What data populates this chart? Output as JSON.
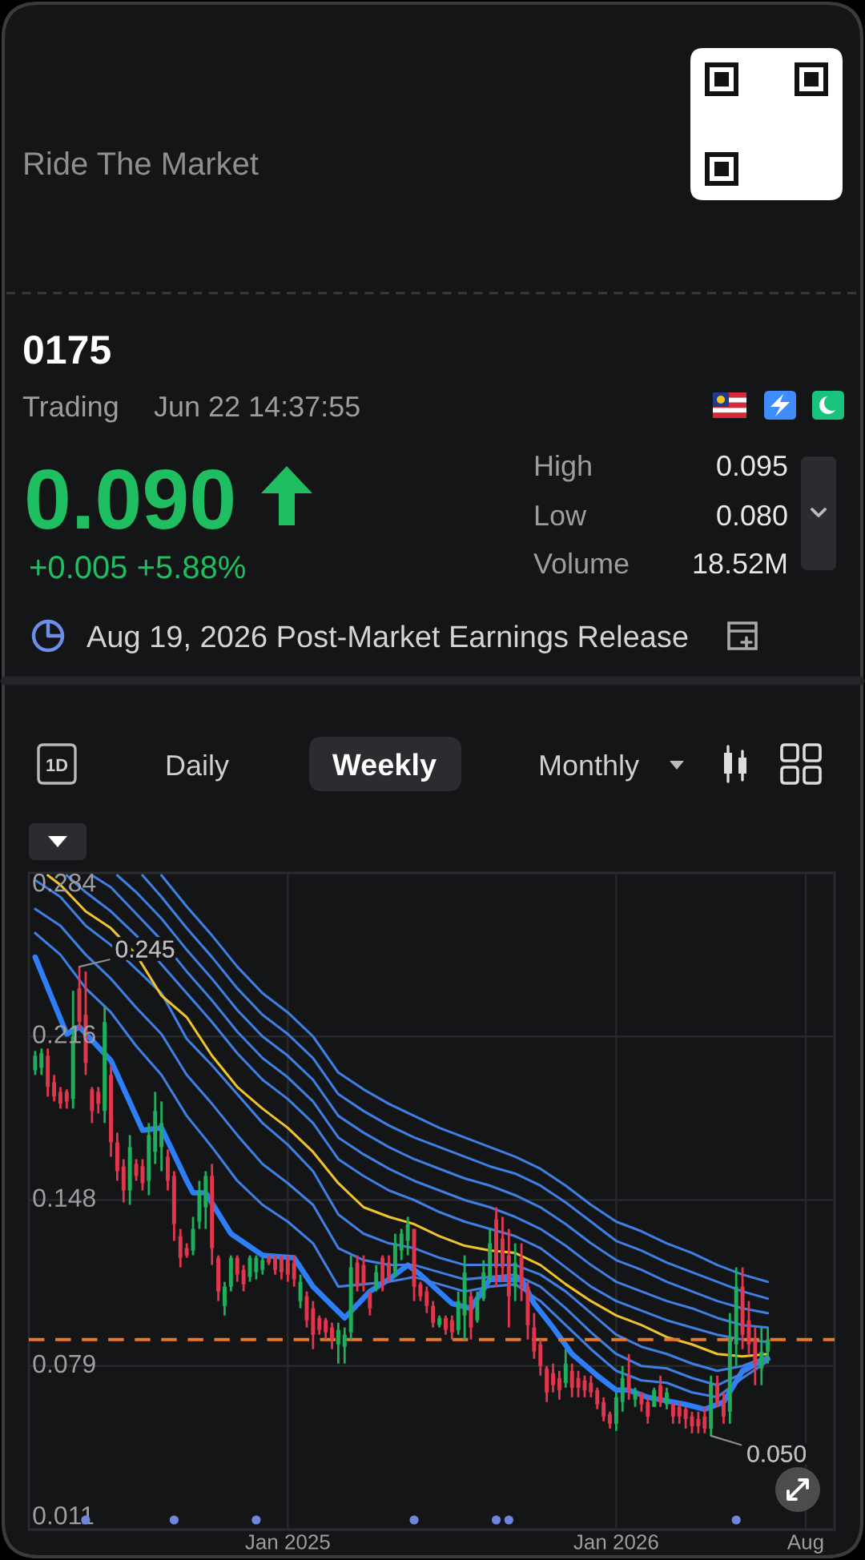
{
  "chart_data": {
    "type": "candlestick",
    "title": "0175",
    "annotations": [
      "Ride The Market",
      "Trading",
      "Jun 22 14:37:55",
      "0.090",
      "+0.005 +5.88%",
      "High",
      "0.095",
      "Low",
      "0.080",
      "Volume",
      "18.52M",
      "Aug 19, 2026 Post-Market Earnings Release",
      "1D",
      "Daily",
      "Weekly",
      "Monthly",
      {
        "text": "0.245",
        "x": "2024-05-20",
        "y": 0.245
      },
      {
        "text": "0.050",
        "x": "2026-04-20",
        "y": 0.05
      }
    ],
    "x": [
      "2024-04-01",
      "2024-04-08",
      "2024-04-15",
      "2024-04-22",
      "2024-04-29",
      "2024-05-06",
      "2024-05-13",
      "2024-05-20",
      "2024-05-27",
      "2024-06-03",
      "2024-06-10",
      "2024-06-17",
      "2024-06-24",
      "2024-07-01",
      "2024-07-08",
      "2024-07-15",
      "2024-07-22",
      "2024-07-29",
      "2024-08-05",
      "2024-08-12",
      "2024-08-19",
      "2024-08-26",
      "2024-09-02",
      "2024-09-09",
      "2024-09-16",
      "2024-09-23",
      "2024-09-30",
      "2024-10-07",
      "2024-10-14",
      "2024-10-21",
      "2024-10-28",
      "2024-11-04",
      "2024-11-11",
      "2024-11-18",
      "2024-11-25",
      "2024-12-02",
      "2024-12-09",
      "2024-12-16",
      "2024-12-23",
      "2024-12-30",
      "2025-01-06",
      "2025-01-13",
      "2025-01-20",
      "2025-01-27",
      "2025-02-03",
      "2025-02-10",
      "2025-02-17",
      "2025-02-24",
      "2025-03-03",
      "2025-03-10",
      "2025-03-17",
      "2025-03-24",
      "2025-03-31",
      "2025-04-07",
      "2025-04-14",
      "2025-04-21",
      "2025-04-28",
      "2025-05-05",
      "2025-05-12",
      "2025-05-19",
      "2025-05-26",
      "2025-06-02",
      "2025-06-09",
      "2025-06-16",
      "2025-06-23",
      "2025-06-30",
      "2025-07-07",
      "2025-07-14",
      "2025-07-21",
      "2025-07-28",
      "2025-08-04",
      "2025-08-11",
      "2025-08-18",
      "2025-08-25",
      "2025-09-01",
      "2025-09-08",
      "2025-09-15",
      "2025-09-22",
      "2025-09-29",
      "2025-10-06",
      "2025-10-13",
      "2025-10-20",
      "2025-10-27",
      "2025-11-03",
      "2025-11-10",
      "2025-11-17",
      "2025-11-24",
      "2025-12-01",
      "2025-12-08",
      "2025-12-15",
      "2025-12-22",
      "2025-12-29",
      "2026-01-05",
      "2026-01-12",
      "2026-01-19",
      "2026-01-26",
      "2026-02-02",
      "2026-02-09",
      "2026-02-16",
      "2026-02-23",
      "2026-03-02",
      "2026-03-09",
      "2026-03-16",
      "2026-03-23",
      "2026-03-30",
      "2026-04-06",
      "2026-04-13",
      "2026-04-20",
      "2026-04-27",
      "2026-05-04",
      "2026-05-11",
      "2026-05-18",
      "2026-05-25",
      "2026-06-01",
      "2026-06-08",
      "2026-06-15",
      "2026-06-22"
    ],
    "ohlc": [
      [
        0.202,
        0.21,
        0.2,
        0.208
      ],
      [
        0.203,
        0.211,
        0.2,
        0.209
      ],
      [
        0.208,
        0.211,
        0.191,
        0.195
      ],
      [
        0.197,
        0.2,
        0.189,
        0.191
      ],
      [
        0.193,
        0.195,
        0.186,
        0.188
      ],
      [
        0.193,
        0.194,
        0.186,
        0.189
      ],
      [
        0.19,
        0.235,
        0.186,
        0.216
      ],
      [
        0.236,
        0.245,
        0.219,
        0.222
      ],
      [
        0.225,
        0.243,
        0.2,
        0.205
      ],
      [
        0.194,
        0.195,
        0.18,
        0.185
      ],
      [
        0.193,
        0.195,
        0.184,
        0.188
      ],
      [
        0.185,
        0.229,
        0.18,
        0.222
      ],
      [
        0.2,
        0.204,
        0.166,
        0.172
      ],
      [
        0.172,
        0.176,
        0.156,
        0.16
      ],
      [
        0.162,
        0.165,
        0.147,
        0.152
      ],
      [
        0.152,
        0.175,
        0.146,
        0.17
      ],
      [
        0.163,
        0.165,
        0.156,
        0.158
      ],
      [
        0.162,
        0.165,
        0.152,
        0.155
      ],
      [
        0.156,
        0.18,
        0.15,
        0.175
      ],
      [
        0.168,
        0.193,
        0.163,
        0.185
      ],
      [
        0.17,
        0.189,
        0.16,
        0.18
      ],
      [
        0.166,
        0.169,
        0.152,
        0.156
      ],
      [
        0.158,
        0.16,
        0.131,
        0.138
      ],
      [
        0.133,
        0.136,
        0.12,
        0.124
      ],
      [
        0.128,
        0.13,
        0.124,
        0.125
      ],
      [
        0.127,
        0.141,
        0.125,
        0.136
      ],
      [
        0.139,
        0.156,
        0.136,
        0.152
      ],
      [
        0.145,
        0.16,
        0.136,
        0.158
      ],
      [
        0.158,
        0.163,
        0.121,
        0.128
      ],
      [
        0.124,
        0.125,
        0.106,
        0.11
      ],
      [
        0.104,
        0.114,
        0.1,
        0.112
      ],
      [
        0.112,
        0.125,
        0.11,
        0.124
      ],
      [
        0.124,
        0.125,
        0.114,
        0.117
      ],
      [
        0.119,
        0.121,
        0.11,
        0.113
      ],
      [
        0.116,
        0.125,
        0.114,
        0.124
      ],
      [
        0.118,
        0.125,
        0.115,
        0.124
      ],
      [
        0.119,
        0.124,
        0.117,
        0.123
      ],
      [
        0.124,
        0.125,
        0.121,
        0.122
      ],
      [
        0.124,
        0.125,
        0.117,
        0.119
      ],
      [
        0.124,
        0.125,
        0.115,
        0.118
      ],
      [
        0.123,
        0.125,
        0.114,
        0.117
      ],
      [
        0.122,
        0.125,
        0.112,
        0.115
      ],
      [
        0.106,
        0.117,
        0.103,
        0.114
      ],
      [
        0.108,
        0.11,
        0.095,
        0.098
      ],
      [
        0.103,
        0.106,
        0.086,
        0.092
      ],
      [
        0.099,
        0.1,
        0.092,
        0.094
      ],
      [
        0.098,
        0.099,
        0.09,
        0.093
      ],
      [
        0.095,
        0.097,
        0.086,
        0.09
      ],
      [
        0.088,
        0.097,
        0.08,
        0.094
      ],
      [
        0.087,
        0.095,
        0.08,
        0.092
      ],
      [
        0.093,
        0.125,
        0.09,
        0.12
      ],
      [
        0.122,
        0.125,
        0.11,
        0.112
      ],
      [
        0.121,
        0.125,
        0.11,
        0.113
      ],
      [
        0.109,
        0.11,
        0.1,
        0.103
      ],
      [
        0.111,
        0.121,
        0.11,
        0.118
      ],
      [
        0.124,
        0.125,
        0.11,
        0.113
      ],
      [
        0.122,
        0.125,
        0.114,
        0.116
      ],
      [
        0.118,
        0.134,
        0.116,
        0.13
      ],
      [
        0.127,
        0.136,
        0.123,
        0.134
      ],
      [
        0.131,
        0.141,
        0.125,
        0.138
      ],
      [
        0.136,
        0.136,
        0.106,
        0.112
      ],
      [
        0.113,
        0.114,
        0.106,
        0.108
      ],
      [
        0.11,
        0.112,
        0.101,
        0.104
      ],
      [
        0.104,
        0.106,
        0.095,
        0.097
      ],
      [
        0.096,
        0.1,
        0.095,
        0.099
      ],
      [
        0.099,
        0.1,
        0.092,
        0.094
      ],
      [
        0.098,
        0.1,
        0.09,
        0.093
      ],
      [
        0.094,
        0.11,
        0.092,
        0.106
      ],
      [
        0.1,
        0.125,
        0.09,
        0.118
      ],
      [
        0.108,
        0.11,
        0.09,
        0.095
      ],
      [
        0.098,
        0.11,
        0.097,
        0.106
      ],
      [
        0.107,
        0.123,
        0.106,
        0.118
      ],
      [
        0.116,
        0.136,
        0.114,
        0.13
      ],
      [
        0.14,
        0.145,
        0.112,
        0.12
      ],
      [
        0.132,
        0.141,
        0.114,
        0.12
      ],
      [
        0.125,
        0.136,
        0.095,
        0.108
      ],
      [
        0.112,
        0.13,
        0.106,
        0.122
      ],
      [
        0.124,
        0.13,
        0.106,
        0.112
      ],
      [
        0.112,
        0.114,
        0.09,
        0.096
      ],
      [
        0.095,
        0.101,
        0.082,
        0.085
      ],
      [
        0.088,
        0.09,
        0.075,
        0.079
      ],
      [
        0.078,
        0.079,
        0.064,
        0.068
      ],
      [
        0.076,
        0.08,
        0.068,
        0.071
      ],
      [
        0.074,
        0.077,
        0.065,
        0.069
      ],
      [
        0.072,
        0.086,
        0.07,
        0.08
      ],
      [
        0.077,
        0.08,
        0.066,
        0.07
      ],
      [
        0.074,
        0.077,
        0.066,
        0.07
      ],
      [
        0.073,
        0.075,
        0.066,
        0.069
      ],
      [
        0.072,
        0.075,
        0.066,
        0.068
      ],
      [
        0.069,
        0.07,
        0.061,
        0.063
      ],
      [
        0.064,
        0.066,
        0.056,
        0.058
      ],
      [
        0.059,
        0.06,
        0.053,
        0.055
      ],
      [
        0.055,
        0.068,
        0.052,
        0.066
      ],
      [
        0.064,
        0.079,
        0.06,
        0.074
      ],
      [
        0.075,
        0.084,
        0.065,
        0.068
      ],
      [
        0.065,
        0.07,
        0.062,
        0.069
      ],
      [
        0.068,
        0.068,
        0.06,
        0.063
      ],
      [
        0.064,
        0.066,
        0.055,
        0.058
      ],
      [
        0.062,
        0.07,
        0.062,
        0.069
      ],
      [
        0.071,
        0.075,
        0.062,
        0.064
      ],
      [
        0.063,
        0.07,
        0.061,
        0.068
      ],
      [
        0.063,
        0.064,
        0.055,
        0.058
      ],
      [
        0.062,
        0.064,
        0.055,
        0.058
      ],
      [
        0.061,
        0.062,
        0.053,
        0.057
      ],
      [
        0.058,
        0.06,
        0.051,
        0.054
      ],
      [
        0.057,
        0.06,
        0.051,
        0.054
      ],
      [
        0.058,
        0.062,
        0.051,
        0.053
      ],
      [
        0.053,
        0.075,
        0.05,
        0.072
      ],
      [
        0.072,
        0.075,
        0.062,
        0.064
      ],
      [
        0.065,
        0.068,
        0.055,
        0.058
      ],
      [
        0.06,
        0.101,
        0.055,
        0.09
      ],
      [
        0.088,
        0.12,
        0.079,
        0.112
      ],
      [
        0.112,
        0.12,
        0.086,
        0.092
      ],
      [
        0.098,
        0.106,
        0.084,
        0.088
      ],
      [
        0.09,
        0.095,
        0.071,
        0.08
      ],
      [
        0.078,
        0.095,
        0.071,
        0.085
      ],
      [
        0.085,
        0.095,
        0.08,
        0.09
      ]
    ],
    "colors": [
      "#1fae5b",
      "#1fae5b",
      "#e2364d",
      "#e2364d",
      "#e2364d",
      "#e2364d",
      "#1fae5b",
      "#e2364d",
      "#e2364d",
      "#e2364d",
      "#e2364d",
      "#1fae5b",
      "#e2364d",
      "#e2364d",
      "#e2364d",
      "#1fae5b",
      "#e2364d",
      "#e2364d",
      "#1fae5b",
      "#1fae5b",
      "#1fae5b",
      "#e2364d",
      "#e2364d",
      "#e2364d",
      "#e2364d",
      "#1fae5b",
      "#1fae5b",
      "#1fae5b",
      "#e2364d",
      "#e2364d",
      "#1fae5b",
      "#1fae5b",
      "#e2364d",
      "#e2364d",
      "#1fae5b",
      "#1fae5b",
      "#1fae5b",
      "#e2364d",
      "#e2364d",
      "#e2364d",
      "#e2364d",
      "#e2364d",
      "#1fae5b",
      "#e2364d",
      "#e2364d",
      "#e2364d",
      "#e2364d",
      "#e2364d",
      "#1fae5b",
      "#1fae5b",
      "#1fae5b",
      "#e2364d",
      "#e2364d",
      "#e2364d",
      "#1fae5b",
      "#e2364d",
      "#e2364d",
      "#1fae5b",
      "#1fae5b",
      "#1fae5b",
      "#e2364d",
      "#e2364d",
      "#e2364d",
      "#e2364d",
      "#1fae5b",
      "#e2364d",
      "#e2364d",
      "#1fae5b",
      "#1fae5b",
      "#e2364d",
      "#1fae5b",
      "#1fae5b",
      "#1fae5b",
      "#e2364d",
      "#e2364d",
      "#e2364d",
      "#1fae5b",
      "#e2364d",
      "#e2364d",
      "#e2364d",
      "#e2364d",
      "#e2364d",
      "#e2364d",
      "#e2364d",
      "#1fae5b",
      "#e2364d",
      "#e2364d",
      "#e2364d",
      "#e2364d",
      "#e2364d",
      "#e2364d",
      "#e2364d",
      "#1fae5b",
      "#1fae5b",
      "#e2364d",
      "#1fae5b",
      "#e2364d",
      "#e2364d",
      "#1fae5b",
      "#e2364d",
      "#1fae5b",
      "#e2364d",
      "#e2364d",
      "#e2364d",
      "#e2364d",
      "#e2364d",
      "#e2364d",
      "#1fae5b",
      "#e2364d",
      "#e2364d",
      "#1fae5b",
      "#1fae5b",
      "#e2364d",
      "#e2364d",
      "#e2364d",
      "#1fae5b",
      "#1fae5b"
    ],
    "series": [
      {
        "type": "line",
        "color": "#2d7ff9",
        "x": [
          "2024-04-01",
          "2024-05-06",
          "2024-05-20",
          "2024-06-24",
          "2024-07-29",
          "2024-08-19",
          "2024-09-16",
          "2024-09-23",
          "2024-10-07",
          "2024-11-04",
          "2024-12-09",
          "2025-01-13",
          "2025-02-03",
          "2025-03-10",
          "2025-04-07",
          "2025-04-28",
          "2025-05-19",
          "2025-06-02",
          "2025-07-07",
          "2025-07-28",
          "2025-08-18",
          "2025-09-22",
          "2025-10-06",
          "2025-10-27",
          "2025-11-17",
          "2025-12-15",
          "2026-01-05",
          "2026-01-19",
          "2026-02-09",
          "2026-03-23",
          "2026-04-13",
          "2026-05-04",
          "2026-05-25",
          "2026-06-08",
          "2026-06-22"
        ],
        "values": [
          0.249,
          0.217,
          0.22,
          0.206,
          0.177,
          0.178,
          0.156,
          0.151,
          0.151,
          0.134,
          0.125,
          0.124,
          0.112,
          0.099,
          0.11,
          0.115,
          0.121,
          0.117,
          0.105,
          0.103,
          0.115,
          0.115,
          0.105,
          0.095,
          0.084,
          0.075,
          0.069,
          0.069,
          0.066,
          0.063,
          0.061,
          0.064,
          0.077,
          0.08,
          0.082
        ]
      },
      {
        "type": "line",
        "color": "#3f7fe3",
        "x": [
          "2024-04-01",
          "2024-04-29",
          "2024-05-27",
          "2024-06-24",
          "2024-07-22",
          "2024-08-19",
          "2024-09-16",
          "2024-10-14",
          "2024-11-11",
          "2024-12-09",
          "2025-01-06",
          "2025-02-03",
          "2025-03-03",
          "2025-03-31",
          "2025-04-28",
          "2025-05-26",
          "2025-06-23",
          "2025-07-21",
          "2025-08-18",
          "2025-09-15",
          "2025-10-13",
          "2025-11-10",
          "2025-12-08",
          "2026-01-05",
          "2026-02-02",
          "2026-03-02",
          "2026-03-30",
          "2026-04-27",
          "2026-05-25",
          "2026-06-22"
        ],
        "values": [
          0.259,
          0.25,
          0.236,
          0.226,
          0.212,
          0.2,
          0.183,
          0.17,
          0.156,
          0.146,
          0.139,
          0.13,
          0.112,
          0.113,
          0.114,
          0.116,
          0.113,
          0.11,
          0.112,
          0.113,
          0.106,
          0.096,
          0.086,
          0.077,
          0.073,
          0.072,
          0.068,
          0.066,
          0.074,
          0.081
        ]
      },
      {
        "type": "line",
        "color": "#3f7fe3",
        "x": [
          "2024-04-01",
          "2024-04-29",
          "2024-05-27",
          "2024-06-24",
          "2024-07-22",
          "2024-08-19",
          "2024-09-16",
          "2024-10-14",
          "2024-11-11",
          "2024-12-09",
          "2025-01-06",
          "2025-02-03",
          "2025-03-03",
          "2025-03-31",
          "2025-04-28",
          "2025-05-26",
          "2025-06-23",
          "2025-07-21",
          "2025-08-18",
          "2025-09-15",
          "2025-10-13",
          "2025-11-10",
          "2025-12-08",
          "2026-01-05",
          "2026-02-02",
          "2026-03-02",
          "2026-03-30",
          "2026-04-27",
          "2026-05-25",
          "2026-06-22"
        ],
        "values": [
          0.269,
          0.262,
          0.25,
          0.24,
          0.228,
          0.217,
          0.2,
          0.188,
          0.175,
          0.163,
          0.155,
          0.146,
          0.128,
          0.123,
          0.121,
          0.121,
          0.118,
          0.115,
          0.116,
          0.117,
          0.112,
          0.103,
          0.093,
          0.084,
          0.079,
          0.078,
          0.074,
          0.071,
          0.076,
          0.082
        ]
      },
      {
        "type": "line",
        "color": "#3f7fe3",
        "x": [
          "2024-04-01",
          "2024-04-29",
          "2024-05-27",
          "2024-06-24",
          "2024-07-22",
          "2024-08-19",
          "2024-09-16",
          "2024-10-14",
          "2024-11-11",
          "2024-12-09",
          "2025-01-06",
          "2025-02-03",
          "2025-03-03",
          "2025-03-31",
          "2025-04-28",
          "2025-05-26",
          "2025-06-23",
          "2025-07-21",
          "2025-08-18",
          "2025-09-15",
          "2025-10-13",
          "2025-11-10",
          "2025-12-08",
          "2026-01-05",
          "2026-02-02",
          "2026-03-02",
          "2026-03-30",
          "2026-04-27",
          "2026-05-25",
          "2026-06-22"
        ],
        "values": [
          0.281,
          0.274,
          0.262,
          0.254,
          0.244,
          0.234,
          0.215,
          0.204,
          0.192,
          0.18,
          0.171,
          0.16,
          0.142,
          0.134,
          0.13,
          0.128,
          0.124,
          0.121,
          0.121,
          0.121,
          0.117,
          0.11,
          0.101,
          0.092,
          0.087,
          0.084,
          0.08,
          0.077,
          0.079,
          0.083
        ]
      },
      {
        "type": "line",
        "color": "#eec32c",
        "x": [
          "2024-04-15",
          "2024-04-29",
          "2024-05-27",
          "2024-06-24",
          "2024-07-22",
          "2024-08-19",
          "2024-09-16",
          "2024-10-14",
          "2024-11-11",
          "2024-12-09",
          "2025-01-06",
          "2025-02-03",
          "2025-03-03",
          "2025-03-31",
          "2025-04-28",
          "2025-05-26",
          "2025-06-23",
          "2025-07-21",
          "2025-08-18",
          "2025-09-15",
          "2025-10-13",
          "2025-11-10",
          "2025-12-08",
          "2026-01-05",
          "2026-02-02",
          "2026-03-02",
          "2026-03-30",
          "2026-04-27",
          "2026-05-25",
          "2026-06-22"
        ],
        "values": [
          0.283,
          0.279,
          0.268,
          0.261,
          0.25,
          0.233,
          0.224,
          0.208,
          0.195,
          0.186,
          0.178,
          0.168,
          0.155,
          0.145,
          0.141,
          0.138,
          0.133,
          0.129,
          0.127,
          0.126,
          0.121,
          0.113,
          0.106,
          0.1,
          0.096,
          0.091,
          0.088,
          0.084,
          0.083,
          0.084
        ]
      },
      {
        "type": "line",
        "color": "#3f7fe3",
        "x": [
          "2024-05-06",
          "2024-05-27",
          "2024-06-24",
          "2024-07-22",
          "2024-08-19",
          "2024-09-16",
          "2024-10-14",
          "2024-11-11",
          "2024-12-09",
          "2025-01-06",
          "2025-02-03",
          "2025-03-03",
          "2025-03-31",
          "2025-04-28",
          "2025-05-26",
          "2025-06-23",
          "2025-07-21",
          "2025-08-18",
          "2025-09-15",
          "2025-10-13",
          "2025-11-10",
          "2025-12-08",
          "2026-01-05",
          "2026-02-02",
          "2026-03-02",
          "2026-03-30",
          "2026-04-27",
          "2026-05-25",
          "2026-06-22"
        ],
        "values": [
          0.283,
          0.276,
          0.268,
          0.258,
          0.246,
          0.234,
          0.222,
          0.209,
          0.198,
          0.19,
          0.18,
          0.165,
          0.158,
          0.152,
          0.148,
          0.143,
          0.139,
          0.136,
          0.133,
          0.128,
          0.12,
          0.112,
          0.106,
          0.102,
          0.098,
          0.095,
          0.092,
          0.09,
          0.089
        ]
      },
      {
        "type": "line",
        "color": "#3f7fe3",
        "x": [
          "2024-06-03",
          "2024-06-24",
          "2024-07-22",
          "2024-08-19",
          "2024-09-16",
          "2024-10-14",
          "2024-11-11",
          "2024-12-09",
          "2025-01-06",
          "2025-02-03",
          "2025-03-03",
          "2025-03-31",
          "2025-04-28",
          "2025-05-26",
          "2025-06-23",
          "2025-07-21",
          "2025-08-18",
          "2025-09-15",
          "2025-10-13",
          "2025-11-10",
          "2025-12-08",
          "2026-01-05",
          "2026-02-02",
          "2026-03-02",
          "2026-03-30",
          "2026-04-27",
          "2026-05-25",
          "2026-06-22"
        ],
        "values": [
          0.283,
          0.278,
          0.267,
          0.256,
          0.243,
          0.231,
          0.218,
          0.207,
          0.199,
          0.189,
          0.174,
          0.167,
          0.161,
          0.156,
          0.152,
          0.148,
          0.145,
          0.141,
          0.136,
          0.129,
          0.121,
          0.114,
          0.11,
          0.106,
          0.103,
          0.099,
          0.096,
          0.095
        ]
      },
      {
        "type": "line",
        "color": "#3f7fe3",
        "x": [
          "2024-07-01",
          "2024-07-22",
          "2024-08-19",
          "2024-09-16",
          "2024-10-14",
          "2024-11-11",
          "2024-12-09",
          "2025-01-06",
          "2025-02-03",
          "2025-03-03",
          "2025-03-31",
          "2025-04-28",
          "2025-05-26",
          "2025-06-23",
          "2025-07-21",
          "2025-08-18",
          "2025-09-15",
          "2025-10-13",
          "2025-11-10",
          "2025-12-08",
          "2026-01-05",
          "2026-02-02",
          "2026-03-02",
          "2026-03-30",
          "2026-04-27",
          "2026-05-25",
          "2026-06-22"
        ],
        "values": [
          0.283,
          0.276,
          0.265,
          0.252,
          0.24,
          0.227,
          0.216,
          0.208,
          0.198,
          0.183,
          0.176,
          0.17,
          0.165,
          0.161,
          0.157,
          0.154,
          0.15,
          0.145,
          0.138,
          0.13,
          0.123,
          0.119,
          0.114,
          0.11,
          0.106,
          0.103,
          0.101
        ]
      },
      {
        "type": "line",
        "color": "#3f7fe3",
        "x": [
          "2024-07-29",
          "2024-08-19",
          "2024-09-16",
          "2024-10-14",
          "2024-11-11",
          "2024-12-09",
          "2025-01-06",
          "2025-02-03",
          "2025-03-03",
          "2025-03-31",
          "2025-04-28",
          "2025-05-26",
          "2025-06-23",
          "2025-07-21",
          "2025-08-18",
          "2025-09-15",
          "2025-10-13",
          "2025-11-10",
          "2025-12-08",
          "2026-01-05",
          "2026-02-02",
          "2026-03-02",
          "2026-03-30",
          "2026-04-27",
          "2026-05-25",
          "2026-06-22"
        ],
        "values": [
          0.283,
          0.274,
          0.261,
          0.249,
          0.236,
          0.225,
          0.217,
          0.207,
          0.192,
          0.185,
          0.179,
          0.174,
          0.17,
          0.166,
          0.162,
          0.159,
          0.154,
          0.147,
          0.139,
          0.131,
          0.127,
          0.122,
          0.118,
          0.114,
          0.11,
          0.107
        ]
      },
      {
        "type": "line",
        "color": "#3f7fe3",
        "x": [
          "2024-08-19",
          "2024-09-16",
          "2024-10-14",
          "2024-11-11",
          "2024-12-09",
          "2025-01-06",
          "2025-02-03",
          "2025-03-03",
          "2025-03-31",
          "2025-04-28",
          "2025-05-26",
          "2025-06-23",
          "2025-07-21",
          "2025-08-18",
          "2025-09-15",
          "2025-10-13",
          "2025-11-10",
          "2025-12-08",
          "2026-01-05",
          "2026-02-02",
          "2026-03-02",
          "2026-03-30",
          "2026-04-27",
          "2026-05-25",
          "2026-06-22"
        ],
        "values": [
          0.283,
          0.27,
          0.258,
          0.245,
          0.234,
          0.226,
          0.216,
          0.201,
          0.194,
          0.188,
          0.183,
          0.178,
          0.174,
          0.17,
          0.166,
          0.161,
          0.154,
          0.146,
          0.139,
          0.135,
          0.13,
          0.126,
          0.121,
          0.117,
          0.114
        ]
      },
      {
        "type": "scatter",
        "color": "#7086da",
        "marker": "circle",
        "x": [
          "2024-05-27",
          "2024-09-02",
          "2024-12-02",
          "2025-05-26",
          "2025-08-25",
          "2025-09-08",
          "2026-05-18"
        ],
        "values": [
          0.015,
          0.015,
          0.015,
          0.015,
          0.015,
          0.015,
          0.015
        ]
      }
    ],
    "xlim": [
      "2024-03-25",
      "2026-09-04"
    ],
    "xticks": [
      {
        "value": "2025-01-06",
        "label": "Jan 2025"
      },
      {
        "value": "2026-01-05",
        "label": "Jan 2026"
      },
      {
        "value": "2026-08-03",
        "label": "Aug"
      }
    ],
    "ylim": [
      0.011,
      0.284
    ],
    "yticks": [
      0.011,
      0.079,
      0.148,
      0.216,
      0.284
    ],
    "ref_lines": [
      {
        "axis": "y",
        "value": 0.09,
        "color": "#e8782a",
        "line_style": "dashed"
      }
    ],
    "grid": true
  }
}
